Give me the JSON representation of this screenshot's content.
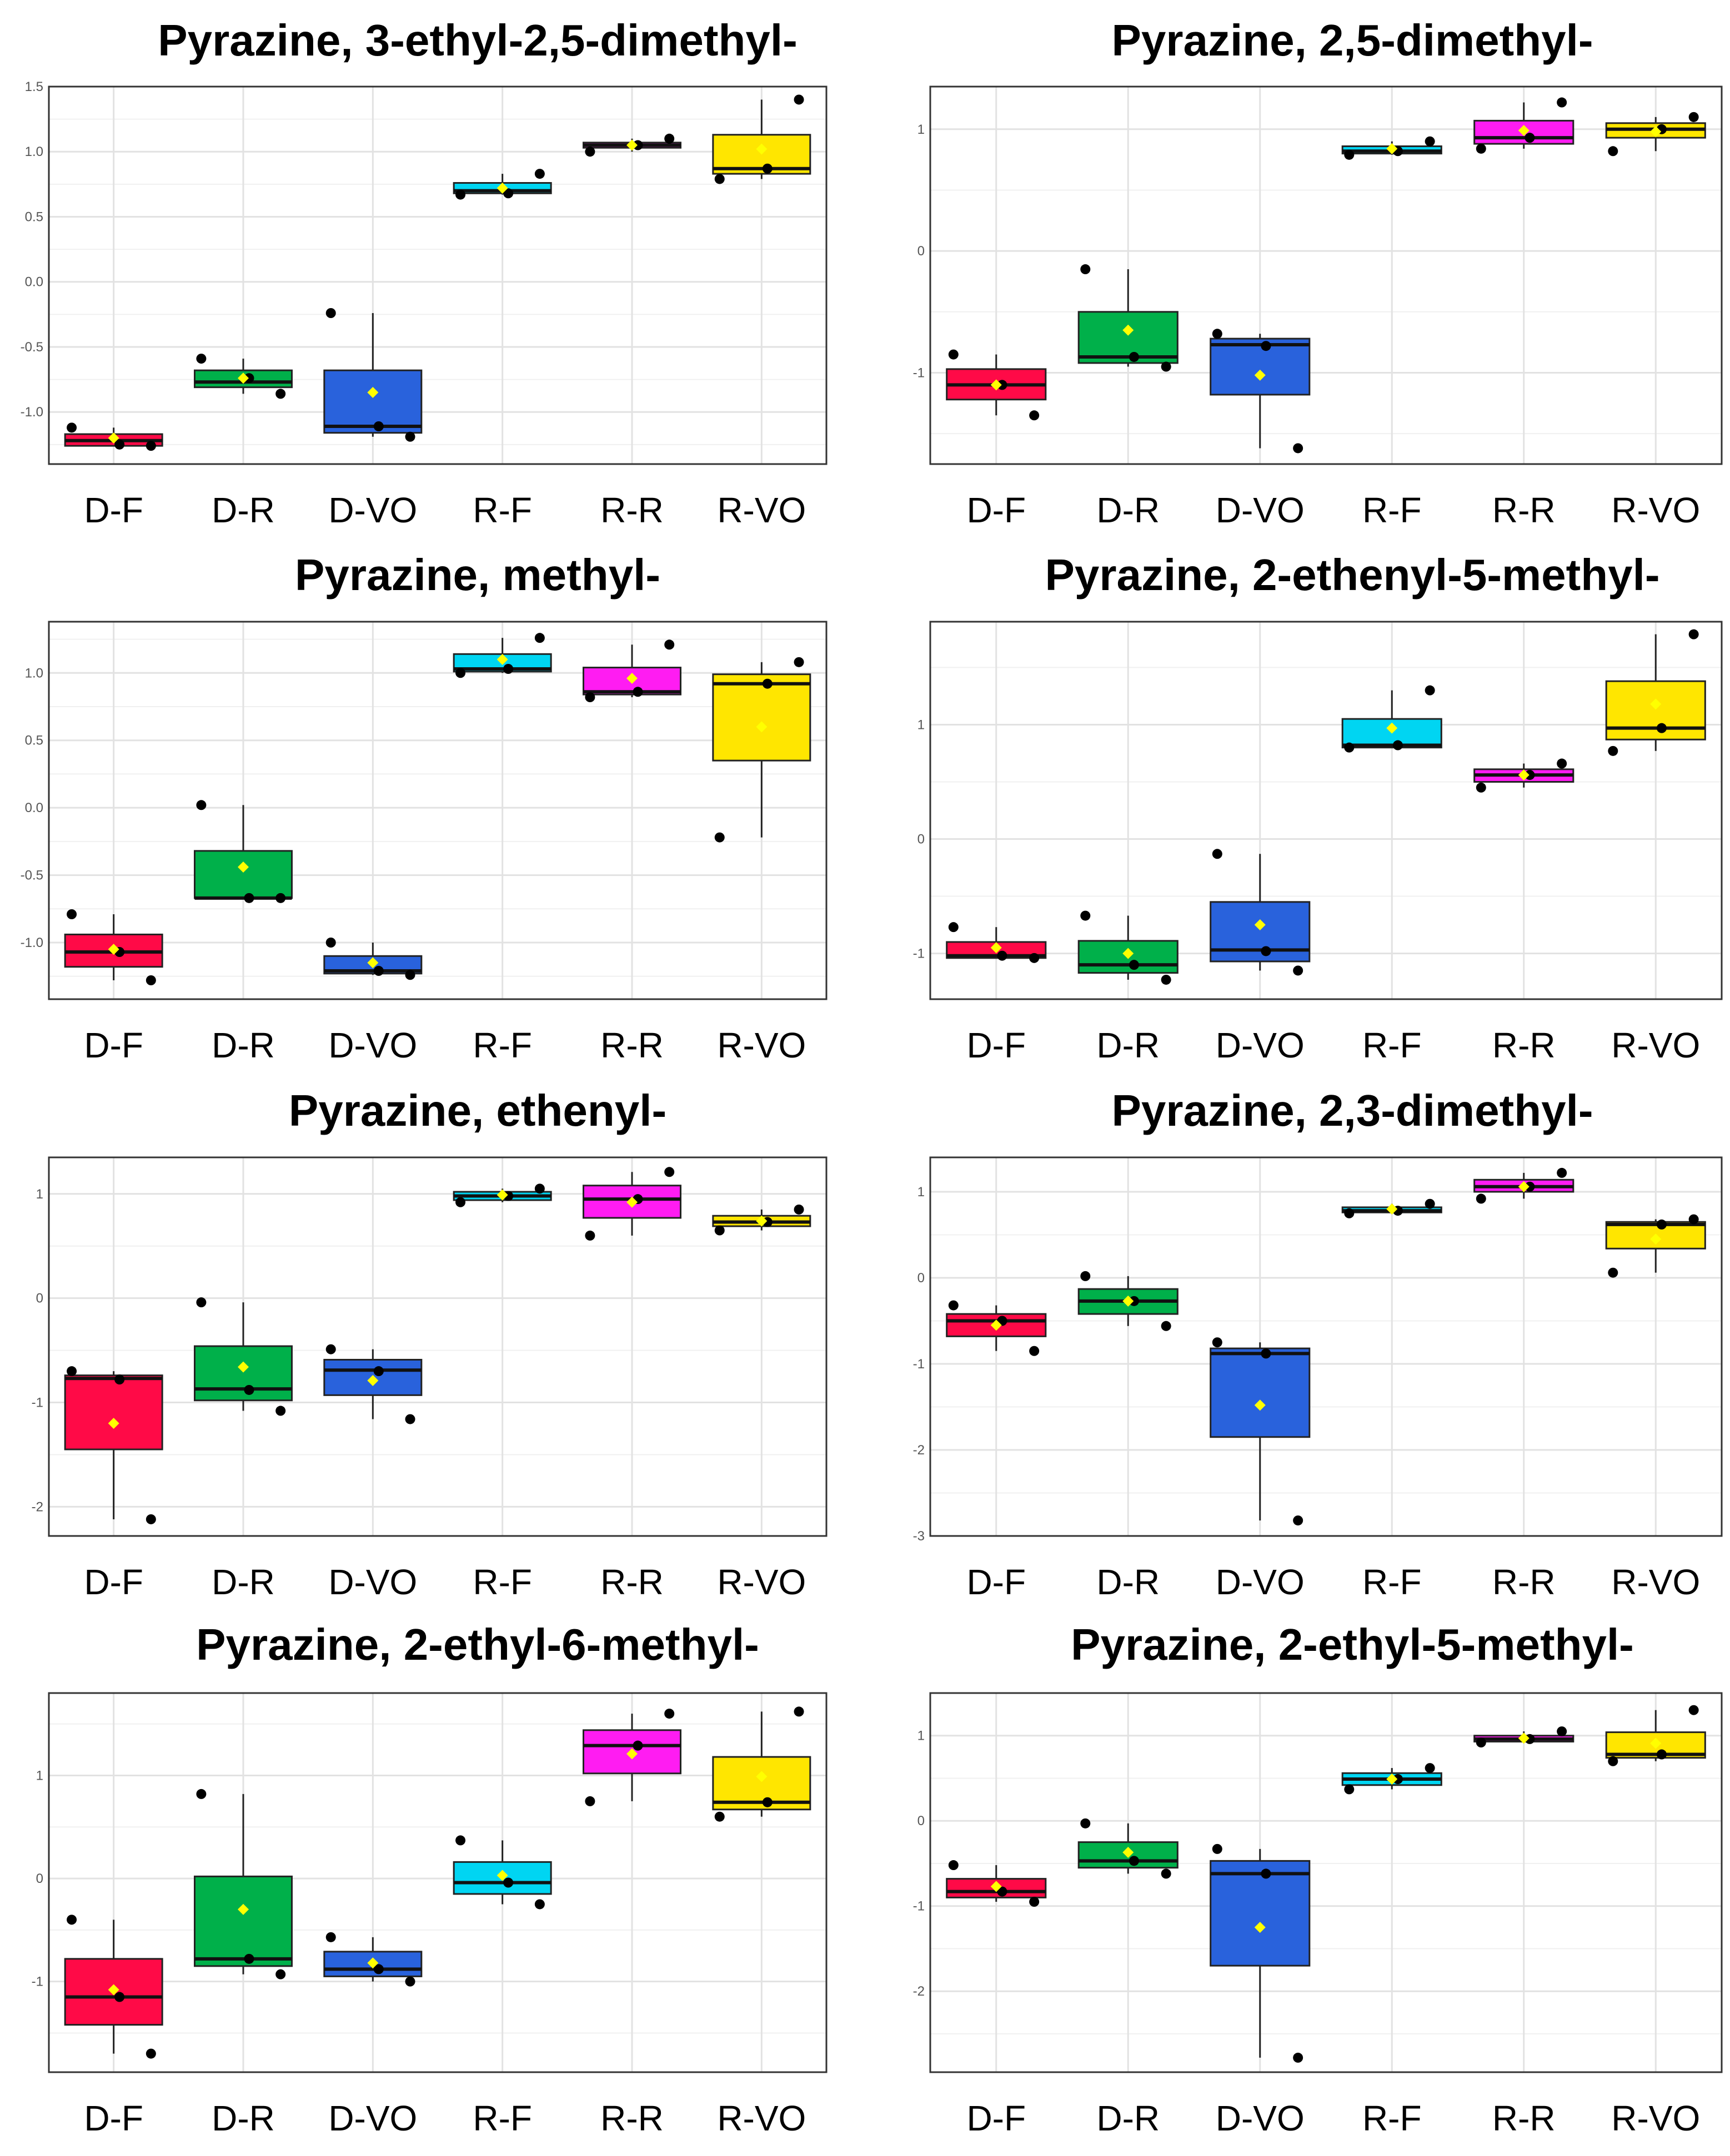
{
  "categories": [
    "D-F",
    "D-R",
    "D-VO",
    "R-F",
    "R-R",
    "R-VO"
  ],
  "colors": {
    "D-F": "#ff0a47",
    "D-R": "#00b04a",
    "D-VO": "#2962dc",
    "R-F": "#00d5f2",
    "R-R": "#ff1cf2",
    "R-VO": "#ffe600",
    "mean_marker": "#ffff00",
    "points": "#000000"
  },
  "chart_data": [
    {
      "type": "box",
      "title": "Pyrazine, 3-ethyl-2,5-dimethyl-",
      "ylim": [
        -1.4,
        1.5
      ],
      "yticks": [
        -1.0,
        -0.5,
        0.0,
        0.5,
        1.0,
        1.5
      ],
      "ytick_labels": [
        "-1.0",
        "-0.5",
        "0.0",
        "0.5",
        "1.0",
        "1.5"
      ],
      "groups": [
        {
          "category": "D-F",
          "q1": -1.26,
          "median": -1.22,
          "q3": -1.17,
          "low": -1.26,
          "high": -1.12,
          "mean": -1.2,
          "points": [
            -1.12,
            -1.25,
            -1.26
          ]
        },
        {
          "category": "D-R",
          "q1": -0.81,
          "median": -0.77,
          "q3": -0.68,
          "low": -0.86,
          "high": -0.59,
          "mean": -0.74,
          "points": [
            -0.59,
            -0.74,
            -0.86
          ]
        },
        {
          "category": "D-VO",
          "q1": -1.16,
          "median": -1.11,
          "q3": -0.68,
          "low": -1.19,
          "high": -0.24,
          "mean": -0.85,
          "points": [
            -0.24,
            -1.11,
            -1.19
          ]
        },
        {
          "category": "R-F",
          "q1": 0.68,
          "median": 0.7,
          "q3": 0.76,
          "low": 0.67,
          "high": 0.83,
          "mean": 0.72,
          "points": [
            0.67,
            0.68,
            0.83
          ]
        },
        {
          "category": "R-R",
          "q1": 1.03,
          "median": 1.05,
          "q3": 1.07,
          "low": 1.0,
          "high": 1.1,
          "mean": 1.05,
          "points": [
            1.0,
            1.05,
            1.1
          ]
        },
        {
          "category": "R-VO",
          "q1": 0.83,
          "median": 0.87,
          "q3": 1.13,
          "low": 0.79,
          "high": 1.4,
          "mean": 1.02,
          "points": [
            0.79,
            0.87,
            1.4
          ]
        }
      ]
    },
    {
      "type": "box",
      "title": "Pyrazine, 2,5-dimethyl-",
      "ylim": [
        -1.75,
        1.35
      ],
      "yticks": [
        -1,
        0,
        1
      ],
      "ytick_labels": [
        "-1",
        "0",
        "1"
      ],
      "groups": [
        {
          "category": "D-F",
          "q1": -1.22,
          "median": -1.1,
          "q3": -0.97,
          "low": -1.35,
          "high": -0.85,
          "mean": -1.1,
          "points": [
            -0.85,
            -1.1,
            -1.35
          ]
        },
        {
          "category": "D-R",
          "q1": -0.92,
          "median": -0.87,
          "q3": -0.5,
          "low": -0.95,
          "high": -0.15,
          "mean": -0.65,
          "points": [
            -0.15,
            -0.87,
            -0.95
          ]
        },
        {
          "category": "D-VO",
          "q1": -1.18,
          "median": -0.77,
          "q3": -0.72,
          "low": -1.62,
          "high": -0.68,
          "mean": -1.02,
          "points": [
            -0.68,
            -0.78,
            -1.62
          ]
        },
        {
          "category": "R-F",
          "q1": 0.8,
          "median": 0.82,
          "q3": 0.86,
          "low": 0.79,
          "high": 0.9,
          "mean": 0.84,
          "points": [
            0.79,
            0.82,
            0.9
          ]
        },
        {
          "category": "R-R",
          "q1": 0.88,
          "median": 0.93,
          "q3": 1.07,
          "low": 0.84,
          "high": 1.22,
          "mean": 0.99,
          "points": [
            0.84,
            0.93,
            1.22
          ]
        },
        {
          "category": "R-VO",
          "q1": 0.93,
          "median": 1.0,
          "q3": 1.05,
          "low": 0.82,
          "high": 1.1,
          "mean": 0.98,
          "points": [
            0.82,
            1.0,
            1.1
          ]
        }
      ]
    },
    {
      "type": "box",
      "title": "Pyrazine, methyl-",
      "ylim": [
        -1.42,
        1.38
      ],
      "yticks": [
        -1.0,
        -0.5,
        0.0,
        0.5,
        1.0
      ],
      "ytick_labels": [
        "-1.0",
        "-0.5",
        "0.0",
        "0.5",
        "1.0"
      ],
      "groups": [
        {
          "category": "D-F",
          "q1": -1.18,
          "median": -1.07,
          "q3": -0.94,
          "low": -1.28,
          "high": -0.79,
          "mean": -1.05,
          "points": [
            -0.79,
            -1.07,
            -1.28
          ]
        },
        {
          "category": "D-R",
          "q1": -0.67,
          "median": -0.67,
          "q3": -0.32,
          "low": -0.67,
          "high": 0.02,
          "mean": -0.44,
          "points": [
            0.02,
            -0.67,
            -0.67
          ]
        },
        {
          "category": "D-VO",
          "q1": -1.23,
          "median": -1.21,
          "q3": -1.1,
          "low": -1.24,
          "high": -1.0,
          "mean": -1.15,
          "points": [
            -1.0,
            -1.21,
            -1.24
          ]
        },
        {
          "category": "R-F",
          "q1": 1.01,
          "median": 1.03,
          "q3": 1.14,
          "low": 1.0,
          "high": 1.26,
          "mean": 1.1,
          "points": [
            1.0,
            1.03,
            1.26
          ]
        },
        {
          "category": "R-R",
          "q1": 0.84,
          "median": 0.86,
          "q3": 1.04,
          "low": 0.82,
          "high": 1.21,
          "mean": 0.96,
          "points": [
            0.82,
            0.86,
            1.21
          ]
        },
        {
          "category": "R-VO",
          "q1": 0.35,
          "median": 0.92,
          "q3": 0.99,
          "low": -0.22,
          "high": 1.08,
          "mean": 0.6,
          "points": [
            -0.22,
            0.92,
            1.08
          ]
        }
      ]
    },
    {
      "type": "box",
      "title": "Pyrazine, 2-ethenyl-5-methyl-",
      "ylim": [
        -1.4,
        1.9
      ],
      "yticks": [
        -1,
        0,
        1
      ],
      "ytick_labels": [
        "-1",
        "0",
        "1"
      ],
      "groups": [
        {
          "category": "D-F",
          "q1": -1.04,
          "median": -1.02,
          "q3": -0.9,
          "low": -1.04,
          "high": -0.77,
          "mean": -0.95,
          "points": [
            -0.77,
            -1.02,
            -1.04
          ]
        },
        {
          "category": "D-R",
          "q1": -1.17,
          "median": -1.1,
          "q3": -0.89,
          "low": -1.23,
          "high": -0.67,
          "mean": -1.0,
          "points": [
            -0.67,
            -1.1,
            -1.23
          ]
        },
        {
          "category": "D-VO",
          "q1": -1.07,
          "median": -0.97,
          "q3": -0.55,
          "low": -1.15,
          "high": -0.13,
          "mean": -0.75,
          "points": [
            -0.13,
            -0.98,
            -1.15
          ]
        },
        {
          "category": "R-F",
          "q1": 0.8,
          "median": 0.82,
          "q3": 1.05,
          "low": 0.8,
          "high": 1.3,
          "mean": 0.97,
          "points": [
            0.8,
            0.82,
            1.3
          ]
        },
        {
          "category": "R-R",
          "q1": 0.5,
          "median": 0.56,
          "q3": 0.61,
          "low": 0.45,
          "high": 0.66,
          "mean": 0.56,
          "points": [
            0.45,
            0.56,
            0.66
          ]
        },
        {
          "category": "R-VO",
          "q1": 0.87,
          "median": 0.97,
          "q3": 1.38,
          "low": 0.77,
          "high": 1.79,
          "mean": 1.18,
          "points": [
            0.77,
            0.97,
            1.79
          ]
        }
      ]
    },
    {
      "type": "box",
      "title": "Pyrazine, ethenyl-",
      "ylim": [
        -2.28,
        1.35
      ],
      "yticks": [
        -2,
        -1,
        0,
        1
      ],
      "ytick_labels": [
        "-2",
        "-1",
        "0",
        "1"
      ],
      "groups": [
        {
          "category": "D-F",
          "q1": -1.45,
          "median": -0.77,
          "q3": -0.74,
          "low": -2.12,
          "high": -0.7,
          "mean": -1.2,
          "points": [
            -0.7,
            -0.78,
            -2.12
          ]
        },
        {
          "category": "D-R",
          "q1": -0.98,
          "median": -0.87,
          "q3": -0.46,
          "low": -1.08,
          "high": -0.04,
          "mean": -0.66,
          "points": [
            -0.04,
            -0.88,
            -1.08
          ]
        },
        {
          "category": "D-VO",
          "q1": -0.93,
          "median": -0.69,
          "q3": -0.59,
          "low": -1.16,
          "high": -0.49,
          "mean": -0.79,
          "points": [
            -0.49,
            -0.7,
            -1.16
          ]
        },
        {
          "category": "R-F",
          "q1": 0.94,
          "median": 0.98,
          "q3": 1.02,
          "low": 0.92,
          "high": 1.05,
          "mean": 0.99,
          "points": [
            0.92,
            0.98,
            1.05
          ]
        },
        {
          "category": "R-R",
          "q1": 0.77,
          "median": 0.95,
          "q3": 1.08,
          "low": 0.6,
          "high": 1.21,
          "mean": 0.92,
          "points": [
            0.6,
            0.95,
            1.21
          ]
        },
        {
          "category": "R-VO",
          "q1": 0.69,
          "median": 0.73,
          "q3": 0.79,
          "low": 0.65,
          "high": 0.85,
          "mean": 0.74,
          "points": [
            0.65,
            0.73,
            0.85
          ]
        }
      ]
    },
    {
      "type": "box",
      "title": "Pyrazine, 2,3-dimethyl-",
      "ylim": [
        -3.0,
        1.4
      ],
      "yticks": [
        -3,
        -2,
        -1,
        0,
        1
      ],
      "ytick_labels": [
        "-3",
        "-2",
        "-1",
        "0",
        "1"
      ],
      "groups": [
        {
          "category": "D-F",
          "q1": -0.68,
          "median": -0.5,
          "q3": -0.42,
          "low": -0.85,
          "high": -0.32,
          "mean": -0.55,
          "points": [
            -0.32,
            -0.5,
            -0.85
          ]
        },
        {
          "category": "D-R",
          "q1": -0.42,
          "median": -0.27,
          "q3": -0.13,
          "low": -0.56,
          "high": 0.02,
          "mean": -0.27,
          "points": [
            0.02,
            -0.27,
            -0.56
          ]
        },
        {
          "category": "D-VO",
          "q1": -1.85,
          "median": -0.88,
          "q3": -0.82,
          "low": -2.82,
          "high": -0.75,
          "mean": -1.48,
          "points": [
            -0.75,
            -0.88,
            -2.82
          ]
        },
        {
          "category": "R-F",
          "q1": 0.76,
          "median": 0.78,
          "q3": 0.82,
          "low": 0.75,
          "high": 0.86,
          "mean": 0.8,
          "points": [
            0.75,
            0.78,
            0.86
          ]
        },
        {
          "category": "R-R",
          "q1": 1.0,
          "median": 1.06,
          "q3": 1.14,
          "low": 0.92,
          "high": 1.22,
          "mean": 1.06,
          "points": [
            0.92,
            1.06,
            1.22
          ]
        },
        {
          "category": "R-VO",
          "q1": 0.34,
          "median": 0.62,
          "q3": 0.65,
          "low": 0.06,
          "high": 0.68,
          "mean": 0.45,
          "points": [
            0.06,
            0.62,
            0.68
          ]
        }
      ]
    },
    {
      "type": "box",
      "title": "Pyrazine, 2-ethyl-6-methyl-",
      "ylim": [
        -1.88,
        1.8
      ],
      "yticks": [
        -1,
        0,
        1
      ],
      "ytick_labels": [
        "-1",
        "0",
        "1"
      ],
      "groups": [
        {
          "category": "D-F",
          "q1": -1.42,
          "median": -1.15,
          "q3": -0.78,
          "low": -1.7,
          "high": -0.4,
          "mean": -1.08,
          "points": [
            -0.4,
            -1.15,
            -1.7
          ]
        },
        {
          "category": "D-R",
          "q1": -0.85,
          "median": -0.78,
          "q3": 0.02,
          "low": -0.93,
          "high": 0.82,
          "mean": -0.3,
          "points": [
            0.82,
            -0.78,
            -0.93
          ]
        },
        {
          "category": "D-VO",
          "q1": -0.95,
          "median": -0.88,
          "q3": -0.71,
          "low": -1.0,
          "high": -0.57,
          "mean": -0.82,
          "points": [
            -0.57,
            -0.88,
            -1.0
          ]
        },
        {
          "category": "R-F",
          "q1": -0.15,
          "median": -0.04,
          "q3": 0.16,
          "low": -0.25,
          "high": 0.37,
          "mean": 0.03,
          "points": [
            0.37,
            -0.04,
            -0.25
          ]
        },
        {
          "category": "R-R",
          "q1": 1.02,
          "median": 1.29,
          "q3": 1.44,
          "low": 0.75,
          "high": 1.6,
          "mean": 1.21,
          "points": [
            0.75,
            1.29,
            1.6
          ]
        },
        {
          "category": "R-VO",
          "q1": 0.67,
          "median": 0.74,
          "q3": 1.18,
          "low": 0.6,
          "high": 1.62,
          "mean": 0.99,
          "points": [
            0.6,
            0.74,
            1.62
          ]
        }
      ]
    },
    {
      "type": "box",
      "title": "Pyrazine, 2-ethyl-5-methyl-",
      "ylim": [
        -2.95,
        1.5
      ],
      "yticks": [
        -2,
        -1,
        0,
        1
      ],
      "ytick_labels": [
        "-2",
        "-1",
        "0",
        "1"
      ],
      "groups": [
        {
          "category": "D-F",
          "q1": -0.9,
          "median": -0.83,
          "q3": -0.68,
          "low": -0.95,
          "high": -0.52,
          "mean": -0.77,
          "points": [
            -0.52,
            -0.83,
            -0.95
          ]
        },
        {
          "category": "D-R",
          "q1": -0.55,
          "median": -0.47,
          "q3": -0.25,
          "low": -0.62,
          "high": -0.03,
          "mean": -0.37,
          "points": [
            -0.03,
            -0.47,
            -0.62
          ]
        },
        {
          "category": "D-VO",
          "q1": -1.7,
          "median": -0.62,
          "q3": -0.47,
          "low": -2.78,
          "high": -0.33,
          "mean": -1.25,
          "points": [
            -0.33,
            -0.62,
            -2.78
          ]
        },
        {
          "category": "R-F",
          "q1": 0.42,
          "median": 0.49,
          "q3": 0.56,
          "low": 0.37,
          "high": 0.62,
          "mean": 0.49,
          "points": [
            0.37,
            0.49,
            0.62
          ]
        },
        {
          "category": "R-R",
          "q1": 0.93,
          "median": 0.96,
          "q3": 1.0,
          "low": 0.92,
          "high": 1.05,
          "mean": 0.97,
          "points": [
            0.92,
            0.96,
            1.05
          ]
        },
        {
          "category": "R-VO",
          "q1": 0.74,
          "median": 0.78,
          "q3": 1.04,
          "low": 0.7,
          "high": 1.3,
          "mean": 0.91,
          "points": [
            0.7,
            0.78,
            1.3
          ]
        }
      ]
    }
  ]
}
